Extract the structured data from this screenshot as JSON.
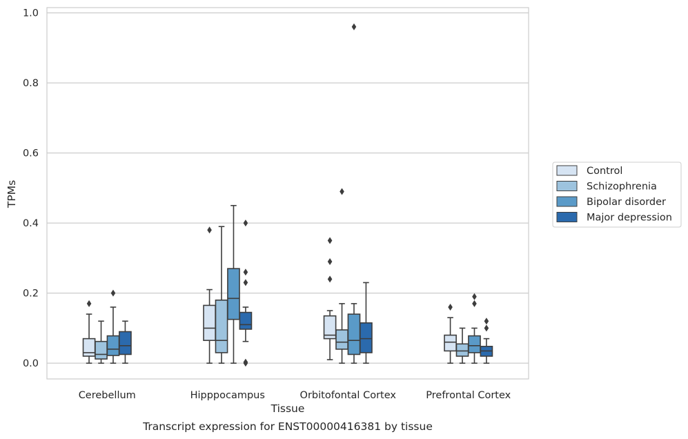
{
  "chart_data": {
    "type": "box",
    "xlabel": "Tissue",
    "ylabel": "TPMs",
    "caption": "Transcript expression for ENST00000416381 by tissue",
    "ylim": [
      -0.045,
      1.015
    ],
    "yticks": [
      "0.0",
      "0.2",
      "0.4",
      "0.6",
      "0.8",
      "1.0"
    ],
    "grid": "horizontal",
    "legend_placement": "right",
    "categories": [
      "Cerebellum",
      "Hipppocampus",
      "Orbitofontal Cortex",
      "Prefrontal Cortex"
    ],
    "series": [
      {
        "name": "Control",
        "color": "#d6e4f3",
        "boxes": [
          {
            "whislo": 0.0,
            "q1": 0.02,
            "med": 0.03,
            "q3": 0.07,
            "whishi": 0.14,
            "fliers": [
              0.17
            ]
          },
          {
            "whislo": 0.0,
            "q1": 0.065,
            "med": 0.1,
            "q3": 0.165,
            "whishi": 0.21,
            "fliers": [
              0.38
            ]
          },
          {
            "whislo": 0.01,
            "q1": 0.07,
            "med": 0.08,
            "q3": 0.135,
            "whishi": 0.15,
            "fliers": [
              0.24,
              0.29,
              0.35
            ]
          },
          {
            "whislo": 0.0,
            "q1": 0.035,
            "med": 0.06,
            "q3": 0.08,
            "whishi": 0.13,
            "fliers": [
              0.16
            ]
          }
        ]
      },
      {
        "name": "Schizophrenia",
        "color": "#9dc3de",
        "boxes": [
          {
            "whislo": 0.0,
            "q1": 0.012,
            "med": 0.025,
            "q3": 0.062,
            "whishi": 0.12,
            "fliers": []
          },
          {
            "whislo": 0.0,
            "q1": 0.03,
            "med": 0.065,
            "q3": 0.18,
            "whishi": 0.39,
            "fliers": []
          },
          {
            "whislo": 0.0,
            "q1": 0.04,
            "med": 0.06,
            "q3": 0.095,
            "whishi": 0.17,
            "fliers": [
              0.49
            ]
          },
          {
            "whislo": 0.0,
            "q1": 0.02,
            "med": 0.035,
            "q3": 0.055,
            "whishi": 0.1,
            "fliers": []
          }
        ]
      },
      {
        "name": "Bipolar disorder",
        "color": "#5a9ac8",
        "boxes": [
          {
            "whislo": 0.0,
            "q1": 0.022,
            "med": 0.04,
            "q3": 0.078,
            "whishi": 0.16,
            "fliers": [
              0.2
            ]
          },
          {
            "whislo": 0.0,
            "q1": 0.125,
            "med": 0.185,
            "q3": 0.27,
            "whishi": 0.45,
            "fliers": []
          },
          {
            "whislo": 0.0,
            "q1": 0.025,
            "med": 0.065,
            "q3": 0.14,
            "whishi": 0.17,
            "fliers": [
              0.96
            ]
          },
          {
            "whislo": 0.0,
            "q1": 0.03,
            "med": 0.05,
            "q3": 0.078,
            "whishi": 0.1,
            "fliers": [
              0.17,
              0.19
            ]
          }
        ]
      },
      {
        "name": "Major depression",
        "color": "#2b6aad",
        "boxes": [
          {
            "whislo": 0.0,
            "q1": 0.025,
            "med": 0.05,
            "q3": 0.09,
            "whishi": 0.12,
            "fliers": []
          },
          {
            "whislo": 0.062,
            "q1": 0.097,
            "med": 0.11,
            "q3": 0.145,
            "whishi": 0.16,
            "fliers": [
              0.0,
              0.003,
              0.23,
              0.26,
              0.4
            ]
          },
          {
            "whislo": 0.0,
            "q1": 0.03,
            "med": 0.07,
            "q3": 0.115,
            "whishi": 0.23,
            "fliers": []
          },
          {
            "whislo": 0.0,
            "q1": 0.02,
            "med": 0.035,
            "q3": 0.048,
            "whishi": 0.07,
            "fliers": [
              0.1,
              0.12
            ]
          }
        ]
      }
    ]
  }
}
